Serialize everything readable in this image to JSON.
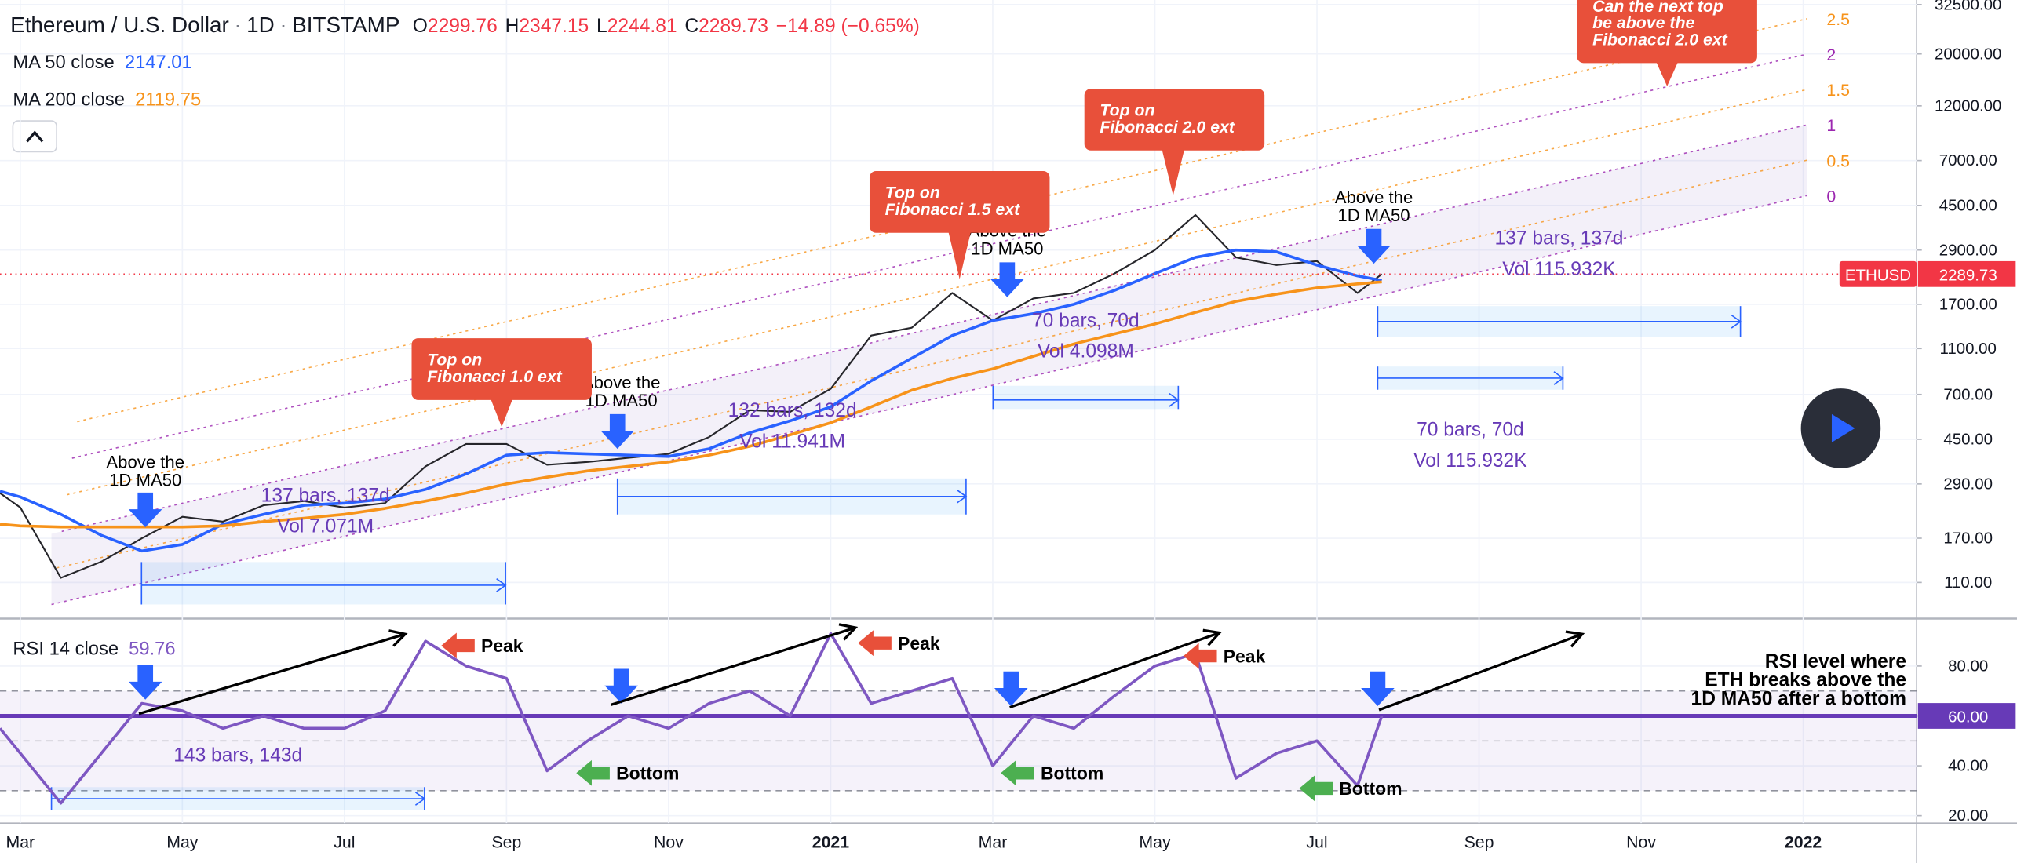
{
  "chart_data": [
    {
      "type": "line",
      "title": "Ethereum / U.S. Dollar",
      "interval": "1D",
      "exchange": "BITSTAMP",
      "ohlc_names": [
        "O",
        "H",
        "L",
        "C"
      ],
      "ohlc": [
        2299.76,
        2347.15,
        2244.81,
        2289.73
      ],
      "change": {
        "value": -14.89,
        "label": "−14.89 (−0.65%)"
      },
      "symbol_tag": "ETHUSD",
      "log_scale": true,
      "grid": true,
      "x": [
        -0.25,
        0,
        0.5,
        1,
        1.5,
        2,
        2.5,
        3,
        3.5,
        4,
        4.5,
        5,
        5.5,
        6,
        6.5,
        7,
        7.5,
        8,
        8.5,
        9,
        9.5,
        10,
        10.5,
        11,
        11.5,
        12,
        12.5,
        13,
        13.5,
        14,
        14.5,
        15,
        15.5,
        16,
        16.5,
        16.8
      ],
      "series": [
        {
          "color": "#26262b",
          "values": [
            265,
            230,
            115,
            135,
            170,
            210,
            200,
            235,
            245,
            230,
            240,
            345,
            430,
            430,
            350,
            360,
            375,
            390,
            460,
            600,
            590,
            740,
            1250,
            1350,
            1900,
            1450,
            1800,
            1900,
            2300,
            2900,
            4100,
            2700,
            2500,
            2600,
            1900,
            2290
          ]
        },
        {
          "name": "MA 50 close",
          "color": "#2962ff",
          "last": 2147.01,
          "values": [
            270,
            255,
            215,
            175,
            150,
            160,
            195,
            215,
            235,
            240,
            250,
            275,
            320,
            385,
            395,
            390,
            385,
            380,
            410,
            480,
            540,
            620,
            800,
            1000,
            1250,
            1450,
            1550,
            1700,
            1950,
            2300,
            2700,
            2900,
            2850,
            2500,
            2250,
            2150
          ]
        },
        {
          "name": "MA 200 close",
          "color": "#f7931a",
          "last": 2119.75,
          "values": [
            195,
            192,
            190,
            190,
            190,
            190,
            192,
            200,
            207,
            215,
            228,
            245,
            265,
            290,
            310,
            330,
            345,
            360,
            385,
            420,
            470,
            530,
            620,
            730,
            820,
            900,
            1020,
            1150,
            1270,
            1400,
            1570,
            1750,
            1880,
            2000,
            2080,
            2120
          ]
        }
      ],
      "xlim": [
        -0.25,
        23.4
      ],
      "xticks": [
        {
          "value": 0,
          "label": "Mar"
        },
        {
          "value": 2,
          "label": "May"
        },
        {
          "value": 4,
          "label": "Jul"
        },
        {
          "value": 6,
          "label": "Sep"
        },
        {
          "value": 8,
          "label": "Nov"
        },
        {
          "value": 10,
          "label": "2021"
        },
        {
          "value": 12,
          "label": "Mar"
        },
        {
          "value": 14,
          "label": "May"
        },
        {
          "value": 16,
          "label": "Jul"
        },
        {
          "value": 18,
          "label": "Sep"
        },
        {
          "value": 20,
          "label": "Nov"
        },
        {
          "value": 22,
          "label": "2022"
        }
      ],
      "ylim": [
        78,
        34000
      ],
      "yticks": [
        {
          "value": 110,
          "label": "110.00"
        },
        {
          "value": 170,
          "label": "170.00"
        },
        {
          "value": 290,
          "label": "290.00"
        },
        {
          "value": 450,
          "label": "450.00"
        },
        {
          "value": 700,
          "label": "700.00"
        },
        {
          "value": 1100,
          "label": "1100.00"
        },
        {
          "value": 1700,
          "label": "1700.00"
        },
        {
          "value": 2900,
          "label": "2900.00"
        },
        {
          "value": 4500,
          "label": "4500.00"
        },
        {
          "value": 7000,
          "label": "7000.00"
        },
        {
          "value": 12000,
          "label": "12000.00"
        },
        {
          "value": 20000,
          "label": "20000.00"
        },
        {
          "value": 32500,
          "label": "32500.00"
        }
      ],
      "fib_levels": [
        0,
        0.5,
        1,
        1.5,
        2,
        2.5
      ],
      "callouts": [
        {
          "text": [
            "Top on",
            "Fibonacci 1.0 ext"
          ]
        },
        {
          "text": [
            "Top on",
            "Fibonacci 1.5 ext"
          ]
        },
        {
          "text": [
            "Top on",
            "Fibonacci 2.0 ext"
          ]
        },
        {
          "text": [
            "Can the next top",
            "be above the",
            "Fibonacci 2.0 ext"
          ]
        }
      ],
      "notes": [
        {
          "text": [
            "Above the",
            "1D MA50"
          ]
        },
        {
          "text": [
            "Above the",
            "1D MA50"
          ]
        },
        {
          "text": [
            "Above the",
            "1D MA50"
          ]
        },
        {
          "text": [
            "Above the",
            "1D MA50"
          ]
        }
      ],
      "measures": [
        {
          "text": [
            "137 bars, 137d",
            "Vol 7.071M"
          ]
        },
        {
          "text": [
            "132 bars, 132d",
            "Vol 11.941M"
          ]
        },
        {
          "text": [
            "70 bars, 70d",
            "Vol 4.098M"
          ]
        },
        {
          "text": [
            "137 bars, 137d",
            "Vol 115.932K"
          ]
        },
        {
          "text": [
            "70 bars, 70d",
            "Vol 115.932K"
          ]
        }
      ]
    },
    {
      "type": "line",
      "grid": true,
      "x": [
        -0.25,
        0,
        0.5,
        1,
        1.5,
        2,
        2.5,
        3,
        3.5,
        4,
        4.5,
        5,
        5.5,
        6,
        6.5,
        7,
        7.5,
        8,
        8.5,
        9,
        9.5,
        10,
        10.5,
        11,
        11.5,
        12,
        12.5,
        13,
        13.5,
        14,
        14.5,
        15,
        15.5,
        16,
        16.5,
        16.8
      ],
      "series": [
        {
          "name": "RSI 14 close",
          "color": "#7e57c2",
          "last": 59.76,
          "values": [
            55,
            45,
            25,
            45,
            65,
            62,
            55,
            60,
            55,
            55,
            62,
            90,
            80,
            75,
            38,
            50,
            60,
            55,
            65,
            70,
            60,
            93,
            65,
            70,
            75,
            40,
            60,
            55,
            68,
            80,
            85,
            35,
            45,
            50,
            32,
            60
          ]
        }
      ],
      "ylim": [
        17,
        99
      ],
      "yticks": [
        {
          "value": 20,
          "label": "20.00"
        },
        {
          "value": 40,
          "label": "40.00"
        },
        {
          "value": 60,
          "label": "60.00"
        },
        {
          "value": 80,
          "label": "80.00"
        }
      ],
      "level": {
        "value": 60,
        "label": "60.00"
      },
      "dashed_levels": [
        30,
        50,
        70
      ],
      "peaks": [
        "Peak",
        "Peak",
        "Peak"
      ],
      "bottoms": [
        "Bottom",
        "Bottom",
        "Bottom"
      ],
      "measures": [
        "143 bars, 143d"
      ],
      "note": [
        "RSI level where",
        "ETH breaks above the",
        "1D MA50 after a bottom"
      ]
    }
  ]
}
